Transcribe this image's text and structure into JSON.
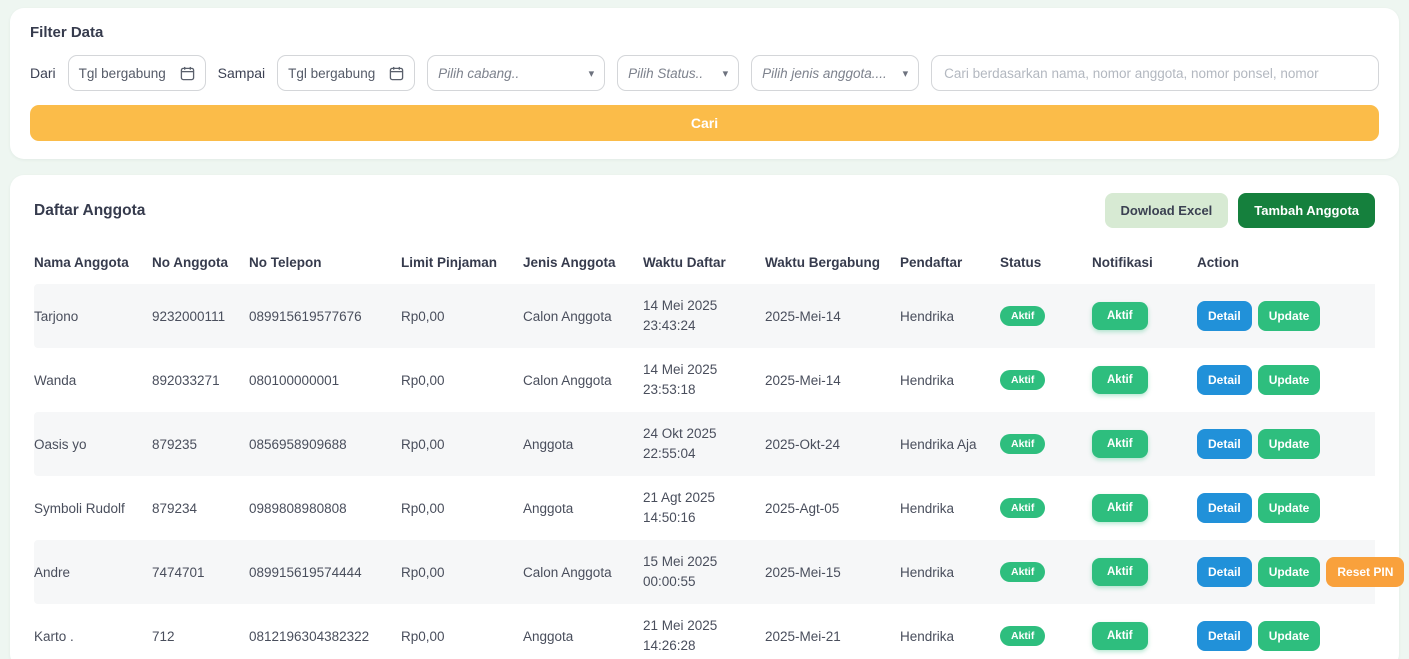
{
  "colors": {
    "page_background": "#eef6f1",
    "accent_amber": "#fbbc49",
    "accent_green": "#2ebe7e",
    "accent_blue": "#2191d9",
    "accent_orange": "#f9a13c",
    "dark_green": "#15803d",
    "light_green": "#d7ead3"
  },
  "filter": {
    "title": "Filter Data",
    "dari_label": "Dari",
    "sampai_label": "Sampai",
    "tgl_placeholder": "Tgl bergabung",
    "cabang_placeholder": "Pilih cabang..",
    "status_placeholder": "Pilih Status..",
    "jenis_placeholder": "Pilih jenis anggota....",
    "search_placeholder": "Cari berdasarkan nama, nomor anggota, nomor ponsel, nomor",
    "cari_label": "Cari"
  },
  "members": {
    "title": "Daftar Anggota",
    "download_excel_label": "Dowload Excel",
    "tambah_label": "Tambah Anggota",
    "columns": [
      "Nama Anggota",
      "No Anggota",
      "No Telepon",
      "Limit Pinjaman",
      "Jenis Anggota",
      "Waktu Daftar",
      "Waktu Bergabung",
      "Pendaftar",
      "Status",
      "Notifikasi",
      "Action"
    ],
    "rows": [
      {
        "nama": "Tarjono",
        "no_anggota": "9232000111",
        "telepon": "089915619577676",
        "limit": "Rp0,00",
        "jenis": "Calon Anggota",
        "waktu_daftar_date": "14 Mei 2025",
        "waktu_daftar_time": "23:43:24",
        "waktu_bergabung": "2025-Mei-14",
        "pendaftar": "Hendrika",
        "status": "Aktif",
        "notifikasi": "Aktif",
        "actions": [
          {
            "label": "Detail",
            "color": "blue"
          },
          {
            "label": "Update",
            "color": "green"
          }
        ]
      },
      {
        "nama": "Wanda",
        "no_anggota": "892033271",
        "telepon": "080100000001",
        "limit": "Rp0,00",
        "jenis": "Calon Anggota",
        "waktu_daftar_date": "14 Mei 2025",
        "waktu_daftar_time": "23:53:18",
        "waktu_bergabung": "2025-Mei-14",
        "pendaftar": "Hendrika",
        "status": "Aktif",
        "notifikasi": "Aktif",
        "actions": [
          {
            "label": "Detail",
            "color": "blue"
          },
          {
            "label": "Update",
            "color": "green"
          }
        ]
      },
      {
        "nama": "Oasis yo",
        "no_anggota": "879235",
        "telepon": "0856958909688",
        "limit": "Rp0,00",
        "jenis": "Anggota",
        "waktu_daftar_date": "24 Okt 2025",
        "waktu_daftar_time": "22:55:04",
        "waktu_bergabung": "2025-Okt-24",
        "pendaftar": "Hendrika Aja",
        "status": "Aktif",
        "notifikasi": "Aktif",
        "actions": [
          {
            "label": "Detail",
            "color": "blue"
          },
          {
            "label": "Update",
            "color": "green"
          }
        ]
      },
      {
        "nama": "Symboli Rudolf",
        "no_anggota": "879234",
        "telepon": "0989808980808",
        "limit": "Rp0,00",
        "jenis": "Anggota",
        "waktu_daftar_date": "21 Agt 2025",
        "waktu_daftar_time": "14:50:16",
        "waktu_bergabung": "2025-Agt-05",
        "pendaftar": "Hendrika",
        "status": "Aktif",
        "notifikasi": "Aktif",
        "actions": [
          {
            "label": "Detail",
            "color": "blue"
          },
          {
            "label": "Update",
            "color": "green"
          }
        ]
      },
      {
        "nama": "Andre",
        "no_anggota": "7474701",
        "telepon": "089915619574444",
        "limit": "Rp0,00",
        "jenis": "Calon Anggota",
        "waktu_daftar_date": "15 Mei 2025",
        "waktu_daftar_time": "00:00:55",
        "waktu_bergabung": "2025-Mei-15",
        "pendaftar": "Hendrika",
        "status": "Aktif",
        "notifikasi": "Aktif",
        "actions": [
          {
            "label": "Detail",
            "color": "blue"
          },
          {
            "label": "Update",
            "color": "green"
          },
          {
            "label": "Reset PIN",
            "color": "orange"
          }
        ]
      },
      {
        "nama": "Karto .",
        "no_anggota": "712",
        "telepon": "0812196304382322",
        "limit": "Rp0,00",
        "jenis": "Anggota",
        "waktu_daftar_date": "21 Mei 2025",
        "waktu_daftar_time": "14:26:28",
        "waktu_bergabung": "2025-Mei-21",
        "pendaftar": "Hendrika",
        "status": "Aktif",
        "notifikasi": "Aktif",
        "actions": [
          {
            "label": "Detail",
            "color": "blue"
          },
          {
            "label": "Update",
            "color": "green"
          }
        ]
      }
    ]
  }
}
